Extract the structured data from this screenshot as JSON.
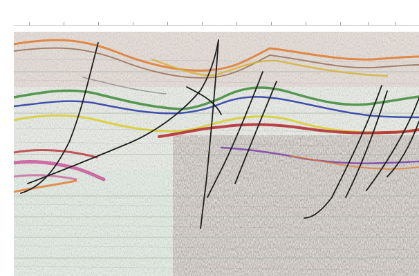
{
  "header": {
    "well_labels": [
      "",
      "",
      ""
    ],
    "shotpoint_labels": [
      "",
      "",
      "",
      "",
      "",
      "",
      "",
      "",
      "",
      "",
      "",
      "",
      "",
      "",
      "",
      "",
      ""
    ]
  },
  "colors": {
    "background": "#ffffff",
    "section_fill": "#e8ece6",
    "horizon_orange": "#e07a2e",
    "horizon_green": "#3c8a3a",
    "horizon_blue": "#2f3fa8",
    "horizon_yellow": "#d7cf2b",
    "horizon_red": "#b3242a",
    "horizon_magenta": "#c33a8a",
    "horizon_purple": "#7b3fa8",
    "fault_line": "#1d1d1d",
    "grid_line": "#9aa89a"
  },
  "icons": {
    "seismic": "seismic-section-icon"
  }
}
